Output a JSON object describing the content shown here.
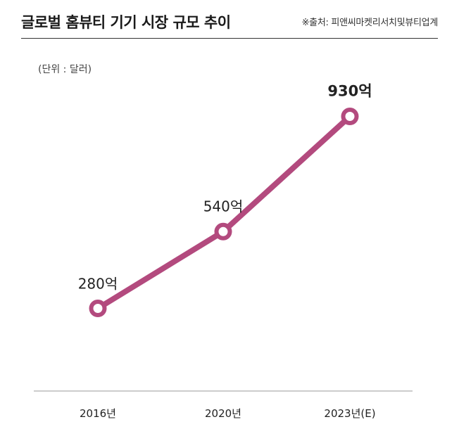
{
  "header": {
    "title": "글로벌 홈뷰티 기기 시장 규모 추이",
    "source": "※출처: 피앤씨마켓리서치및뷰티업계",
    "unit": "(단위 : 달러)"
  },
  "colors": {
    "line": "#b34a7e",
    "marker_center": "#ffffff",
    "axis": "#bbbbbb"
  },
  "chart_data": {
    "type": "line",
    "categories": [
      "2016년",
      "2020년",
      "2023년(E)"
    ],
    "series": [
      {
        "values": [
          280,
          540,
          930
        ]
      }
    ],
    "data_labels": [
      "280억",
      "540억",
      "930억"
    ],
    "ylabel": "(단위 : 달러)",
    "grid": false
  }
}
